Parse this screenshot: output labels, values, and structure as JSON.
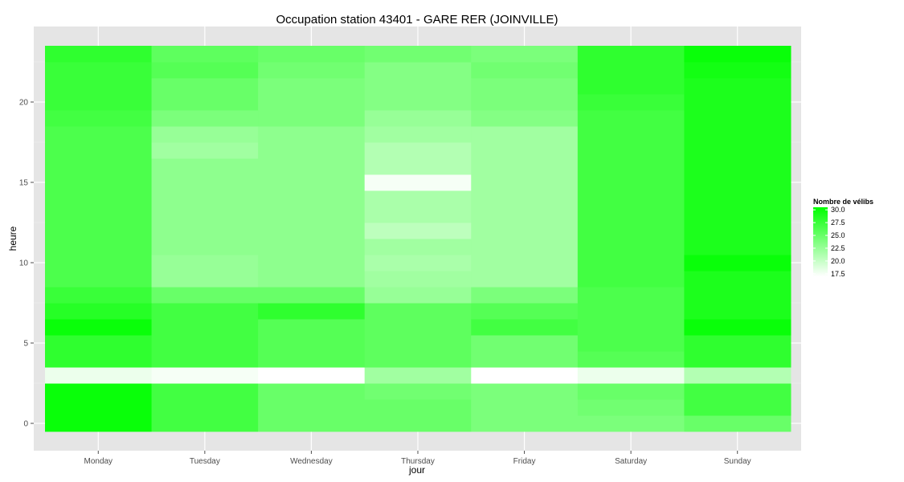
{
  "chart_data": {
    "type": "heatmap",
    "title": "Occupation station 43401 - GARE RER (JOINVILLE)",
    "xlabel": "jour",
    "ylabel": "heure",
    "categories": [
      "Monday",
      "Tuesday",
      "Wednesday",
      "Thursday",
      "Friday",
      "Saturday",
      "Sunday"
    ],
    "y": [
      0,
      1,
      2,
      3,
      4,
      5,
      6,
      7,
      8,
      9,
      10,
      11,
      12,
      13,
      14,
      15,
      16,
      17,
      18,
      19,
      20,
      21,
      22,
      23
    ],
    "yticks": [
      0,
      5,
      10,
      15,
      20
    ],
    "ylim": [
      -0.5,
      23.5
    ],
    "grid": true,
    "color_low": "#ffffff",
    "color_high": "#00ff00",
    "background_color": "#e5e5e5",
    "legend": {
      "title": "Nombre de vélibs",
      "position": "right",
      "labels": [
        "30.0",
        "27.5",
        "25.0",
        "22.5",
        "20.0",
        "17.5"
      ],
      "range": [
        17,
        30.5
      ]
    },
    "values": [
      [
        30,
        27,
        25,
        25,
        24,
        24,
        25
      ],
      [
        30,
        27,
        25,
        25,
        24,
        24.5,
        27
      ],
      [
        30,
        27,
        25,
        24.5,
        24,
        25,
        27
      ],
      [
        18,
        17.5,
        17,
        22,
        17,
        18,
        21
      ],
      [
        28,
        27,
        26,
        25.5,
        24.5,
        26,
        28
      ],
      [
        28,
        27,
        26,
        25.5,
        24.5,
        26.5,
        28
      ],
      [
        30,
        27,
        26,
        25.5,
        27,
        26.5,
        30
      ],
      [
        28.5,
        27,
        28,
        25.5,
        26,
        26.5,
        29
      ],
      [
        27.5,
        25,
        25,
        22.5,
        24,
        26.5,
        29
      ],
      [
        26.5,
        22.5,
        23,
        22,
        22,
        27,
        29
      ],
      [
        26.5,
        22.5,
        23,
        21.5,
        22,
        27,
        30
      ],
      [
        26.5,
        23,
        23,
        22,
        22,
        27,
        29
      ],
      [
        26.5,
        23,
        23,
        20.5,
        22,
        27,
        29
      ],
      [
        26.5,
        23,
        23,
        21.5,
        22,
        27,
        29
      ],
      [
        26.5,
        23,
        23,
        21.5,
        22,
        27,
        29
      ],
      [
        26.5,
        23,
        23,
        17.5,
        22,
        27,
        29
      ],
      [
        26.5,
        23,
        23,
        21,
        22,
        27,
        29
      ],
      [
        26.5,
        22,
        23,
        21,
        22,
        27,
        29
      ],
      [
        26.5,
        22.5,
        23,
        22,
        22,
        27,
        29
      ],
      [
        27,
        24,
        24,
        22.5,
        23.5,
        27,
        29
      ],
      [
        27.5,
        25,
        24,
        23.5,
        24,
        27.5,
        29
      ],
      [
        27.5,
        25,
        24,
        23.5,
        24,
        28,
        29
      ],
      [
        27.5,
        26,
        24.5,
        23.5,
        24.5,
        28,
        29.5
      ],
      [
        28,
        25.5,
        25,
        24.5,
        24,
        28,
        30
      ]
    ]
  }
}
